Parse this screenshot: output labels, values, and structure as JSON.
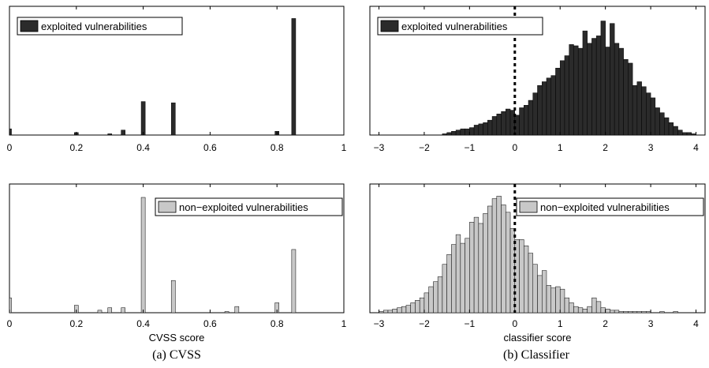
{
  "colors": {
    "exploited": "#2b2b2b",
    "non_exploited": "#c8c8c8",
    "axis": "#000000"
  },
  "captions": [
    "(a) CVSS",
    "(b) Classifier"
  ],
  "chart_data": [
    {
      "type": "bar",
      "title": "",
      "xlabel": "",
      "ylabel": "",
      "legend": "exploited vulnerabilities",
      "legend_position": "top-left",
      "xlim": [
        0,
        1
      ],
      "xticks": [
        "0",
        "0.2",
        "0.4",
        "0.6",
        "0.8",
        "1"
      ],
      "ymax": 1.0,
      "bin_width": 0.012,
      "x": [
        0.0,
        0.2,
        0.3,
        0.34,
        0.4,
        0.49,
        0.8,
        0.85
      ],
      "values": [
        0.05,
        0.02,
        0.01,
        0.04,
        0.27,
        0.26,
        0.03,
        0.94
      ],
      "color_key": "exploited"
    },
    {
      "type": "bar",
      "title": "",
      "xlabel": "",
      "ylabel": "",
      "legend": "exploited vulnerabilities",
      "legend_position": "top-left",
      "xlim": [
        -3.2,
        4.2
      ],
      "xticks": [
        "−3",
        "−2",
        "−1",
        "0",
        "1",
        "2",
        "3",
        "4"
      ],
      "threshold": 0,
      "ymax": 1.0,
      "bin_start": -1.6,
      "bin_width": 0.1,
      "values": [
        0.01,
        0.02,
        0.03,
        0.04,
        0.05,
        0.05,
        0.06,
        0.08,
        0.09,
        0.1,
        0.12,
        0.15,
        0.17,
        0.19,
        0.21,
        0.2,
        0.16,
        0.22,
        0.24,
        0.28,
        0.34,
        0.4,
        0.43,
        0.46,
        0.48,
        0.54,
        0.6,
        0.64,
        0.73,
        0.72,
        0.7,
        0.84,
        0.74,
        0.78,
        0.8,
        0.92,
        0.71,
        0.9,
        0.74,
        0.7,
        0.61,
        0.58,
        0.4,
        0.43,
        0.39,
        0.34,
        0.3,
        0.22,
        0.18,
        0.14,
        0.1,
        0.07,
        0.04,
        0.02,
        0.02,
        0.01
      ],
      "color_key": "exploited"
    },
    {
      "type": "bar",
      "title": "",
      "xlabel": "CVSS score",
      "ylabel": "",
      "legend": "non−exploited vulnerabilities",
      "legend_position": "top-right",
      "xlim": [
        0,
        1
      ],
      "xticks": [
        "0",
        "0.2",
        "0.4",
        "0.6",
        "0.8",
        "1"
      ],
      "ymax": 1.0,
      "bin_width": 0.012,
      "x": [
        0.0,
        0.2,
        0.27,
        0.3,
        0.34,
        0.4,
        0.49,
        0.65,
        0.68,
        0.8,
        0.85
      ],
      "values": [
        0.12,
        0.06,
        0.02,
        0.04,
        0.04,
        0.93,
        0.26,
        0.01,
        0.05,
        0.08,
        0.51
      ],
      "color_key": "non_exploited"
    },
    {
      "type": "bar",
      "title": "",
      "xlabel": "classifier score",
      "ylabel": "",
      "legend": "non−exploited vulnerabilities",
      "legend_position": "top-right",
      "xlim": [
        -3.2,
        4.2
      ],
      "xticks": [
        "−3",
        "−2",
        "−1",
        "0",
        "1",
        "2",
        "3",
        "4"
      ],
      "threshold": 0,
      "ymax": 1.0,
      "bin_start": -3.0,
      "bin_width": 0.1,
      "values": [
        0.01,
        0.02,
        0.02,
        0.03,
        0.04,
        0.05,
        0.06,
        0.08,
        0.1,
        0.12,
        0.16,
        0.21,
        0.25,
        0.29,
        0.39,
        0.47,
        0.55,
        0.63,
        0.56,
        0.6,
        0.73,
        0.77,
        0.72,
        0.8,
        0.86,
        0.92,
        0.94,
        0.87,
        0.81,
        0.68,
        0.59,
        0.59,
        0.54,
        0.48,
        0.39,
        0.3,
        0.34,
        0.22,
        0.2,
        0.21,
        0.19,
        0.12,
        0.08,
        0.05,
        0.04,
        0.03,
        0.05,
        0.12,
        0.09,
        0.04,
        0.03,
        0.02,
        0.02,
        0.01,
        0.01,
        0.01,
        0.01,
        0.01,
        0.01,
        0.01,
        0.0,
        0.0,
        0.01,
        0.0,
        0.0,
        0.01,
        0.0,
        0.0
      ],
      "color_key": "non_exploited"
    }
  ]
}
